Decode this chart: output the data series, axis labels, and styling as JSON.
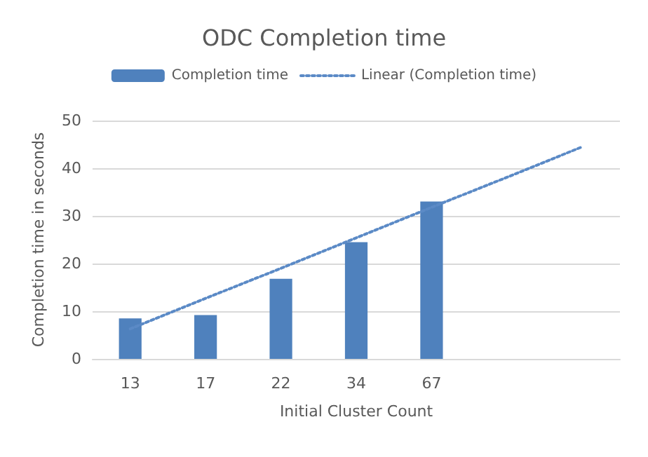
{
  "chart_data": {
    "type": "bar",
    "title": "ODC Completion time",
    "xlabel": "Initial Cluster Count",
    "ylabel": "Completion time in seconds",
    "categories": [
      "13",
      "17",
      "22",
      "34",
      "67",
      null,
      null
    ],
    "series": [
      {
        "name": "Completion time",
        "color": "#4f81bd",
        "values": [
          8.5,
          9.2,
          16.8,
          24.5,
          33,
          null,
          null
        ]
      },
      {
        "name": "Linear (Completion time)",
        "type": "line",
        "color": "#5b8ac6",
        "line_style": "dotted",
        "marker": "none",
        "values": [
          6.3,
          12.7,
          19.0,
          25.4,
          31.8,
          38.1,
          44.5
        ]
      }
    ],
    "ylim": [
      0,
      50
    ],
    "yticks": [
      0,
      10,
      20,
      30,
      40,
      50
    ],
    "grid": "y",
    "legend": "top"
  }
}
